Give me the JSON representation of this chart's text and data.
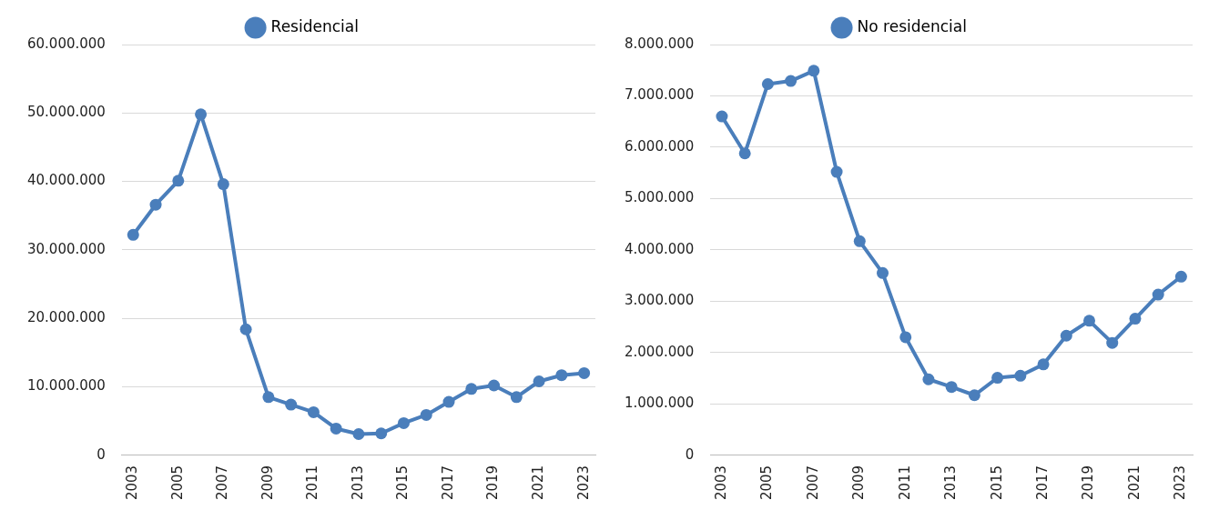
{
  "chart_data": [
    {
      "type": "line",
      "categories": [
        "2003",
        null,
        "2005",
        null,
        "2007",
        null,
        "2009",
        null,
        "2011",
        null,
        "2013",
        null,
        "2015",
        null,
        "2017",
        null,
        "2019",
        null,
        "2021",
        null,
        "2023"
      ],
      "series": [
        {
          "name": "Residencial",
          "color": "#4a7ebb",
          "values": [
            32200000,
            36600000,
            40100000,
            49800000,
            39600000,
            18400000,
            8500000,
            7400000,
            6300000,
            3900000,
            3100000,
            3200000,
            4700000,
            5900000,
            7800000,
            9700000,
            10200000,
            8500000,
            10800000,
            11700000,
            12000000
          ]
        }
      ],
      "ylim": [
        0,
        60000000
      ],
      "yticks": [
        {
          "value": 0,
          "label": "0"
        },
        {
          "value": 10000000,
          "label": "10.000.000"
        },
        {
          "value": 20000000,
          "label": "20.000.000"
        },
        {
          "value": 30000000,
          "label": "30.000.000"
        },
        {
          "value": 40000000,
          "label": "40.000.000"
        },
        {
          "value": 50000000,
          "label": "50.000.000"
        },
        {
          "value": 60000000,
          "label": "60.000.000"
        }
      ],
      "grid": "y",
      "legend": "top",
      "marker": "circle",
      "line_style": "solid"
    },
    {
      "type": "line",
      "categories": [
        "2003",
        null,
        "2005",
        null,
        "2007",
        null,
        "2009",
        null,
        "2011",
        null,
        "2013",
        null,
        "2015",
        null,
        "2017",
        null,
        "2019",
        null,
        "2021",
        null,
        "2023"
      ],
      "series": [
        {
          "name": "No residencial",
          "color": "#4a7ebb",
          "values": [
            6600000,
            5880000,
            7230000,
            7290000,
            7490000,
            5520000,
            4170000,
            3550000,
            2300000,
            1480000,
            1330000,
            1170000,
            1510000,
            1550000,
            1770000,
            2330000,
            2620000,
            2190000,
            2660000,
            3130000,
            3480000
          ]
        }
      ],
      "ylim": [
        0,
        8000000
      ],
      "yticks": [
        {
          "value": 0,
          "label": "0"
        },
        {
          "value": 1000000,
          "label": "1.000.000"
        },
        {
          "value": 2000000,
          "label": "2.000.000"
        },
        {
          "value": 3000000,
          "label": "3.000.000"
        },
        {
          "value": 4000000,
          "label": "4.000.000"
        },
        {
          "value": 5000000,
          "label": "5.000.000"
        },
        {
          "value": 6000000,
          "label": "6.000.000"
        },
        {
          "value": 7000000,
          "label": "7.000.000"
        },
        {
          "value": 8000000,
          "label": "8.000.000"
        }
      ],
      "grid": "y",
      "legend": "top",
      "marker": "circle",
      "line_style": "solid"
    }
  ]
}
